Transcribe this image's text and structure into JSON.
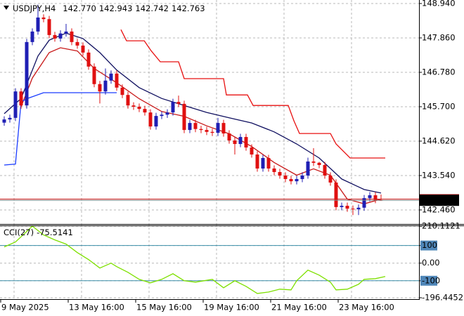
{
  "header": {
    "symbol": "USDJPY,H4",
    "last_ohlc": [
      "142.770",
      "142.943",
      "142.742",
      "142.763"
    ]
  },
  "chart_data": [
    {
      "type": "candlestick",
      "x": [
        0,
        1,
        2,
        3,
        4,
        5,
        6,
        7,
        8,
        9,
        10,
        11,
        12,
        13,
        14,
        15,
        16,
        17,
        18,
        19,
        20,
        21,
        22,
        23,
        24,
        25,
        26,
        27,
        28,
        29,
        30,
        31,
        32,
        33,
        34,
        35,
        36,
        37,
        38,
        39,
        40,
        41,
        42,
        43,
        44,
        45,
        46,
        47,
        48,
        49,
        50,
        51,
        52,
        53,
        54,
        55,
        56,
        57,
        58,
        59,
        60,
        61,
        62,
        63,
        64,
        65,
        66,
        67
      ],
      "open": [
        145.2,
        145.3,
        145.35,
        146.18,
        145.74,
        147.73,
        148.06,
        148.5,
        148.45,
        147.95,
        147.84,
        148.0,
        148.06,
        147.73,
        147.62,
        147.4,
        146.96,
        146.41,
        146.18,
        146.52,
        146.74,
        146.3,
        146.07,
        145.74,
        145.7,
        145.63,
        145.52,
        145.08,
        145.41,
        145.45,
        145.52,
        145.85,
        145.79,
        144.97,
        145.19,
        145.0,
        144.97,
        144.91,
        144.88,
        145.19,
        144.86,
        144.64,
        144.53,
        144.75,
        144.42,
        144.2,
        143.76,
        144.09,
        143.76,
        143.65,
        143.54,
        143.43,
        143.36,
        143.43,
        143.54,
        143.98,
        143.94,
        143.87,
        143.54,
        143.32,
        142.55,
        142.59,
        142.5,
        142.48,
        142.53,
        142.83,
        142.92,
        142.77
      ],
      "high": [
        145.4,
        145.45,
        146.28,
        146.28,
        147.83,
        148.16,
        148.9,
        148.6,
        148.55,
        148.05,
        148.1,
        148.3,
        148.16,
        147.83,
        147.72,
        147.5,
        147.06,
        146.51,
        146.9,
        146.84,
        146.84,
        146.4,
        146.17,
        145.84,
        145.8,
        145.73,
        145.62,
        145.51,
        145.55,
        145.62,
        145.95,
        146.05,
        145.89,
        145.29,
        145.29,
        145.1,
        145.07,
        145.01,
        145.35,
        145.29,
        144.96,
        144.74,
        144.85,
        144.85,
        144.52,
        144.3,
        144.19,
        144.19,
        143.86,
        143.75,
        143.64,
        143.53,
        143.53,
        143.64,
        144.1,
        144.4,
        143.97,
        143.97,
        143.64,
        143.42,
        142.69,
        142.69,
        142.6,
        142.63,
        142.93,
        143.02,
        143.02,
        142.943
      ],
      "low": [
        145.1,
        145.2,
        145.25,
        145.64,
        145.64,
        147.63,
        147.96,
        148.35,
        147.85,
        147.74,
        147.74,
        147.9,
        147.63,
        147.52,
        147.3,
        146.86,
        146.31,
        145.8,
        146.08,
        146.42,
        146.2,
        145.97,
        145.64,
        145.6,
        145.53,
        145.42,
        144.98,
        144.98,
        145.31,
        145.35,
        145.42,
        145.69,
        144.87,
        144.87,
        144.9,
        144.87,
        144.81,
        144.78,
        144.78,
        144.76,
        144.54,
        144.2,
        144.43,
        144.32,
        144.1,
        143.66,
        143.66,
        143.66,
        143.55,
        143.44,
        143.33,
        143.26,
        143.26,
        143.33,
        143.44,
        143.84,
        143.77,
        143.44,
        143.22,
        142.45,
        142.45,
        142.4,
        142.3,
        142.3,
        142.43,
        142.73,
        142.67,
        142.742
      ],
      "close": [
        145.3,
        145.35,
        146.18,
        145.74,
        147.73,
        148.06,
        148.5,
        148.45,
        147.95,
        147.84,
        148.0,
        148.06,
        147.73,
        147.62,
        147.4,
        146.96,
        146.41,
        146.18,
        146.52,
        146.74,
        146.3,
        146.07,
        145.74,
        145.7,
        145.63,
        145.52,
        145.08,
        145.41,
        145.45,
        145.52,
        145.85,
        145.79,
        144.97,
        145.19,
        145.0,
        144.97,
        144.91,
        144.88,
        145.19,
        144.86,
        144.64,
        144.53,
        144.75,
        144.42,
        144.2,
        143.76,
        144.09,
        143.76,
        143.65,
        143.54,
        143.43,
        143.36,
        143.43,
        143.54,
        143.98,
        143.94,
        143.87,
        143.54,
        143.32,
        142.55,
        142.59,
        142.5,
        142.48,
        142.53,
        142.83,
        142.92,
        142.77,
        142.763
      ],
      "up_color": "#1f1fb4",
      "down_color": "#e01010",
      "lines": [
        {
          "color": "#101060",
          "x": [
            0,
            3,
            6,
            8,
            11,
            14,
            17,
            20,
            24,
            28,
            32,
            36,
            40,
            44,
            48,
            52,
            56,
            60,
            64,
            67
          ],
          "values": [
            145.48,
            145.96,
            147.29,
            147.79,
            148.01,
            147.84,
            147.4,
            146.85,
            146.3,
            145.96,
            145.74,
            145.52,
            145.35,
            145.19,
            144.91,
            144.53,
            144.09,
            143.43,
            143.1,
            142.99
          ]
        },
        {
          "color": "#c81818",
          "x": [
            3,
            5,
            8,
            10,
            13,
            16,
            20,
            24,
            28,
            32,
            36,
            40,
            44,
            48,
            52,
            55,
            58,
            61,
            64,
            67
          ],
          "values": [
            145.7,
            146.6,
            147.4,
            147.55,
            147.45,
            146.9,
            146.45,
            145.95,
            145.55,
            145.4,
            145.1,
            144.85,
            144.45,
            143.95,
            143.55,
            143.75,
            143.55,
            142.8,
            142.65,
            142.8
          ]
        },
        {
          "color": "#1a3cff",
          "x": [
            0,
            2,
            3,
            4,
            7,
            20
          ],
          "values": [
            143.87,
            143.9,
            145.85,
            145.95,
            146.14,
            146.14
          ]
        },
        {
          "color": "#e81010",
          "x": [
            20.75,
            21.75,
            24.9,
            26.1,
            27.75,
            31,
            32,
            39,
            39.5,
            43.25,
            44.25,
            50.5,
            51.5,
            52.5,
            58,
            59,
            61.5,
            67.75
          ],
          "values": [
            148.12,
            147.77,
            147.77,
            147.46,
            147.11,
            147.11,
            146.58,
            146.58,
            146.07,
            146.07,
            145.74,
            145.74,
            145.26,
            144.86,
            144.86,
            144.53,
            144.09,
            144.09
          ]
        }
      ],
      "ask": 142.8,
      "xlim": [
        -0.75,
        73.75
      ],
      "xticks": [
        {
          "value": 0,
          "label": "9 May 2025"
        },
        {
          "value": 12,
          "label": "13 May 16:00"
        },
        {
          "value": 24,
          "label": "15 May 16:00"
        },
        {
          "value": 36,
          "label": "19 May 16:00"
        },
        {
          "value": 48,
          "label": "21 May 16:00"
        },
        {
          "value": 60,
          "label": "23 May 16:00"
        }
      ],
      "ylim": [
        142.04,
        149.05
      ],
      "yticks": [
        {
          "value": 148.94,
          "label": "148.940"
        },
        {
          "value": 147.86,
          "label": "147.860"
        },
        {
          "value": 146.78,
          "label": "146.780"
        },
        {
          "value": 145.7,
          "label": "145.700"
        },
        {
          "value": 144.62,
          "label": "144.620"
        },
        {
          "value": 143.54,
          "label": "143.540"
        },
        {
          "value": 142.46,
          "label": "142.460"
        }
      ],
      "grid": true
    },
    {
      "type": "line",
      "title": "CCI(27)",
      "last_value": -75.5141,
      "series": [
        {
          "color": "#7ee000",
          "x": [
            0,
            2,
            4,
            5,
            7,
            9,
            11,
            13,
            15,
            17,
            19,
            20,
            22,
            24,
            26,
            28,
            30,
            32,
            34,
            37,
            39,
            41,
            43,
            45,
            47,
            49,
            51,
            52,
            54,
            56,
            58,
            59,
            61,
            63,
            64,
            66,
            67.75
          ],
          "values": [
            92,
            120,
            180,
            210,
            160,
            132,
            108,
            60,
            20,
            -28,
            0,
            -20,
            -52,
            -92,
            -112,
            -92,
            -60,
            -100,
            -108,
            -92,
            -140,
            -100,
            -132,
            -172,
            -164,
            -148,
            -152,
            -100,
            -40,
            -68,
            -108,
            -152,
            -148,
            -120,
            -92,
            -88,
            -75.5141
          ]
        }
      ],
      "levels": [
        100,
        -100
      ],
      "level_color": "#3a8ea8",
      "ylim": [
        -196.4452,
        210.1121
      ],
      "yticks": [
        {
          "value": 210.1121,
          "label": "210.1121"
        },
        100,
        {
          "value": 0,
          "label": "0.00"
        },
        -100,
        {
          "value": -196.4452,
          "label": "-196.4452"
        }
      ],
      "grid": true
    }
  ]
}
